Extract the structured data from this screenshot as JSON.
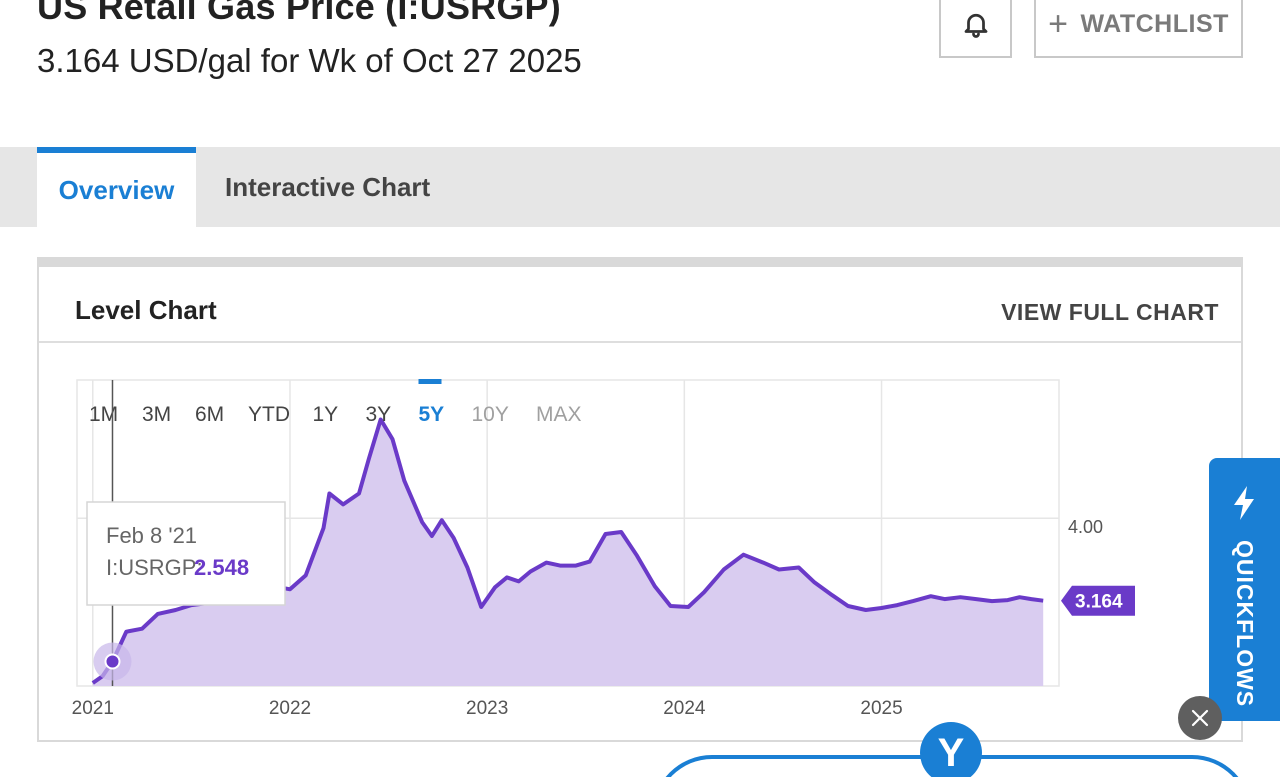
{
  "header": {
    "title": "US Retail Gas Price (I:USRGP)",
    "subtitle": "3.164 USD/gal for Wk of Oct 27 2025",
    "bell_icon": "bell-icon",
    "watchlist_label": "WATCHLIST",
    "watchlist_icon": "plus-icon"
  },
  "tabs": [
    {
      "label": "Overview",
      "active": true
    },
    {
      "label": "Interactive Chart",
      "active": false
    }
  ],
  "card": {
    "title": "Level Chart",
    "link_label": "VIEW FULL CHART"
  },
  "range_buttons": [
    {
      "label": "1M",
      "state": "normal"
    },
    {
      "label": "3M",
      "state": "normal"
    },
    {
      "label": "6M",
      "state": "normal"
    },
    {
      "label": "YTD",
      "state": "normal"
    },
    {
      "label": "1Y",
      "state": "normal"
    },
    {
      "label": "3Y",
      "state": "normal"
    },
    {
      "label": "5Y",
      "state": "active"
    },
    {
      "label": "10Y",
      "state": "disabled"
    },
    {
      "label": "MAX",
      "state": "disabled"
    }
  ],
  "tooltip": {
    "date": "Feb 8 '21",
    "series_label": "I:USRGP:",
    "value": "2.548"
  },
  "chart_data": {
    "type": "area",
    "series": [
      {
        "values": [
          [
            2021.0,
            2.33
          ],
          [
            2021.05,
            2.4
          ],
          [
            2021.1,
            2.548
          ],
          [
            2021.17,
            2.85
          ],
          [
            2021.25,
            2.88
          ],
          [
            2021.33,
            3.03
          ],
          [
            2021.42,
            3.07
          ],
          [
            2021.5,
            3.12
          ],
          [
            2021.58,
            3.14
          ],
          [
            2021.67,
            3.18
          ],
          [
            2021.75,
            3.2
          ],
          [
            2021.83,
            3.4
          ],
          [
            2021.92,
            3.31
          ],
          [
            2022.0,
            3.28
          ],
          [
            2022.08,
            3.42
          ],
          [
            2022.17,
            3.9
          ],
          [
            2022.2,
            4.25
          ],
          [
            2022.27,
            4.14
          ],
          [
            2022.35,
            4.25
          ],
          [
            2022.4,
            4.6
          ],
          [
            2022.46,
            5.0
          ],
          [
            2022.52,
            4.8
          ],
          [
            2022.58,
            4.38
          ],
          [
            2022.67,
            3.96
          ],
          [
            2022.72,
            3.82
          ],
          [
            2022.77,
            3.98
          ],
          [
            2022.83,
            3.8
          ],
          [
            2022.9,
            3.5
          ],
          [
            2022.97,
            3.1
          ],
          [
            2023.04,
            3.3
          ],
          [
            2023.1,
            3.4
          ],
          [
            2023.16,
            3.36
          ],
          [
            2023.22,
            3.46
          ],
          [
            2023.3,
            3.55
          ],
          [
            2023.37,
            3.52
          ],
          [
            2023.45,
            3.52
          ],
          [
            2023.52,
            3.56
          ],
          [
            2023.6,
            3.84
          ],
          [
            2023.68,
            3.86
          ],
          [
            2023.76,
            3.62
          ],
          [
            2023.85,
            3.31
          ],
          [
            2023.93,
            3.11
          ],
          [
            2024.02,
            3.1
          ],
          [
            2024.1,
            3.25
          ],
          [
            2024.2,
            3.48
          ],
          [
            2024.3,
            3.63
          ],
          [
            2024.4,
            3.55
          ],
          [
            2024.48,
            3.48
          ],
          [
            2024.58,
            3.5
          ],
          [
            2024.66,
            3.35
          ],
          [
            2024.75,
            3.22
          ],
          [
            2024.83,
            3.11
          ],
          [
            2024.92,
            3.07
          ],
          [
            2025.0,
            3.09
          ],
          [
            2025.08,
            3.12
          ],
          [
            2025.16,
            3.16
          ],
          [
            2025.25,
            3.21
          ],
          [
            2025.32,
            3.18
          ],
          [
            2025.4,
            3.2
          ],
          [
            2025.48,
            3.18
          ],
          [
            2025.56,
            3.16
          ],
          [
            2025.64,
            3.17
          ],
          [
            2025.7,
            3.2
          ],
          [
            2025.76,
            3.18
          ],
          [
            2025.82,
            3.164
          ]
        ]
      }
    ],
    "xlabels": [
      "2021",
      "2022",
      "2023",
      "2024",
      "2025"
    ],
    "ytick_label": "4.00",
    "last_value_label": "3.164",
    "xlim": [
      2020.92,
      2025.9
    ],
    "ylim": [
      2.3,
      5.4
    ],
    "line_color": "#6a3ac8",
    "fill_color": "#d9ccf0"
  },
  "quickflows": {
    "label": "QUICKFLOWS",
    "icon": "lightning-bolt-icon"
  },
  "close_button": {
    "icon": "close-icon"
  },
  "brand_logo": {
    "text": "Y"
  },
  "colors": {
    "accent": "#1a7fd4",
    "series": "#6a3ac8"
  }
}
